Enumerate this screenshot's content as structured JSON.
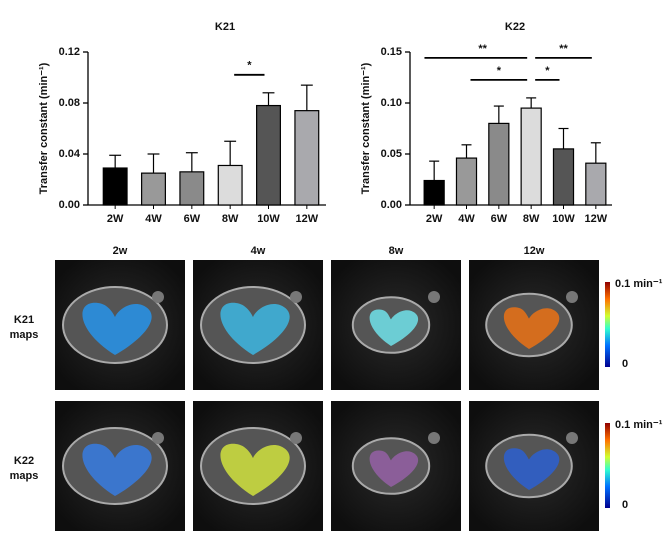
{
  "chart_data": [
    {
      "type": "bar",
      "title": "K21",
      "ylabel": "Transfer constant (min⁻¹)",
      "categories": [
        "2W",
        "4W",
        "6W",
        "8W",
        "10W",
        "12W"
      ],
      "values": [
        0.029,
        0.025,
        0.026,
        0.031,
        0.078,
        0.074
      ],
      "errors": [
        0.01,
        0.015,
        0.015,
        0.019,
        0.01,
        0.02
      ],
      "colors": [
        "#000000",
        "#999999",
        "#8a8a8a",
        "#dcdcdc",
        "#555555",
        "#a9a9ad"
      ],
      "ylim": [
        0,
        0.12
      ],
      "yticks": [
        {
          "value": 0,
          "label": "0.00"
        },
        {
          "value": 0.04,
          "label": "0.04"
        },
        {
          "value": 0.08,
          "label": "0.08"
        },
        {
          "value": 0.12,
          "label": "0.12"
        }
      ],
      "annotations": [
        {
          "text": "*",
          "between": [
            "8W",
            "10W"
          ]
        }
      ]
    },
    {
      "type": "bar",
      "title": "K22",
      "ylabel": "Transfer constant (min⁻¹)",
      "categories": [
        "2W",
        "4W",
        "6W",
        "8W",
        "10W",
        "12W"
      ],
      "values": [
        0.024,
        0.046,
        0.08,
        0.095,
        0.055,
        0.041
      ],
      "errors": [
        0.019,
        0.013,
        0.017,
        0.01,
        0.02,
        0.02
      ],
      "colors": [
        "#000000",
        "#999999",
        "#8a8a8a",
        "#dcdcdc",
        "#555555",
        "#a9a9ad"
      ],
      "ylim": [
        0,
        0.15
      ],
      "yticks": [
        {
          "value": 0,
          "label": "0.00"
        },
        {
          "value": 0.05,
          "label": "0.05"
        },
        {
          "value": 0.1,
          "label": "0.10"
        },
        {
          "value": 0.15,
          "label": "0.15"
        }
      ],
      "annotations": [
        {
          "text": "**",
          "between": [
            "2W",
            "8W"
          ]
        },
        {
          "text": "**",
          "between": [
            "8W",
            "12W"
          ]
        },
        {
          "text": "*",
          "between": [
            "4W",
            "8W"
          ]
        },
        {
          "text": "*",
          "between": [
            "8W",
            "10W"
          ]
        }
      ]
    }
  ],
  "maps": {
    "columns": [
      "2w",
      "4w",
      "8w",
      "12w"
    ],
    "rows": [
      {
        "name": "K21",
        "sub": "maps"
      },
      {
        "name": "K22",
        "sub": "maps"
      }
    ],
    "colorbar": {
      "max_label": "0.1 min⁻¹",
      "min_label": "0"
    }
  }
}
